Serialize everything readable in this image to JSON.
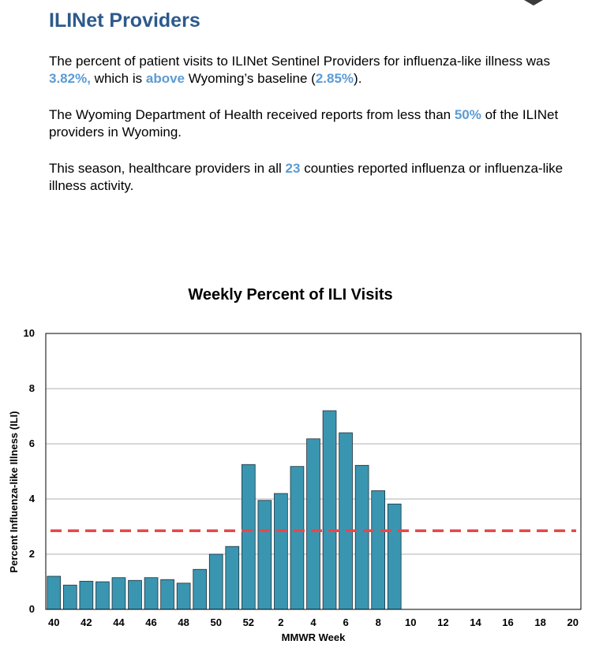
{
  "header": {
    "title": "ILINet Providers"
  },
  "summary": {
    "p1": {
      "t1": "The percent of patient visits to ILINet Sentinel Providers for influenza-like illness was ",
      "v1": "3.82%,",
      "t2": " which is ",
      "v2": "above",
      "t3": " Wyoming’s baseline (",
      "v3": "2.85%",
      "t4": ")."
    },
    "p2": {
      "t1": "The Wyoming Department of Health received reports from less than ",
      "v1": "50%",
      "t2": " of the ILINet providers in Wyoming."
    },
    "p3": {
      "t1": "This season, healthcare providers in all ",
      "v1": "23",
      "t2": " counties reported influenza or influenza-like illness activity."
    }
  },
  "colors": {
    "title": "#2c5a8c",
    "highlight": "#5b9bd5",
    "bar_fill": "#3a96b0",
    "bar_stroke": "#1f2f3a",
    "baseline": "#e8474a",
    "grid": "#b0b0b0"
  },
  "chart_data": {
    "type": "bar",
    "title": "Weekly Percent of ILI Visits",
    "xlabel": "MMWR Week",
    "ylabel": "Percent Influenza-like Illness (ILI)",
    "ylim": [
      0,
      10
    ],
    "yticks": [
      0,
      2,
      4,
      6,
      8,
      10
    ],
    "grid": true,
    "categories": [
      40,
      41,
      42,
      43,
      44,
      45,
      46,
      47,
      48,
      49,
      50,
      51,
      52,
      1,
      2,
      3,
      4,
      5,
      6,
      7,
      8,
      9,
      10,
      11,
      12,
      13,
      14,
      15,
      16,
      17,
      18,
      19,
      20
    ],
    "xtick_labels": [
      "40",
      "",
      "42",
      "",
      "44",
      "",
      "46",
      "",
      "48",
      "",
      "50",
      "",
      "52",
      "",
      "2",
      "",
      "4",
      "",
      "6",
      "",
      "8",
      "",
      "10",
      "",
      "12",
      "",
      "14",
      "",
      "16",
      "",
      "18",
      "",
      "20"
    ],
    "values": [
      1.2,
      0.88,
      1.02,
      1.0,
      1.15,
      1.05,
      1.15,
      1.08,
      0.95,
      1.45,
      2.0,
      2.28,
      5.25,
      3.95,
      4.2,
      5.18,
      6.18,
      7.2,
      6.4,
      5.22,
      4.3,
      3.82,
      null,
      null,
      null,
      null,
      null,
      null,
      null,
      null,
      null,
      null,
      null
    ],
    "baseline": {
      "value": 2.85,
      "style": "dashed"
    }
  }
}
